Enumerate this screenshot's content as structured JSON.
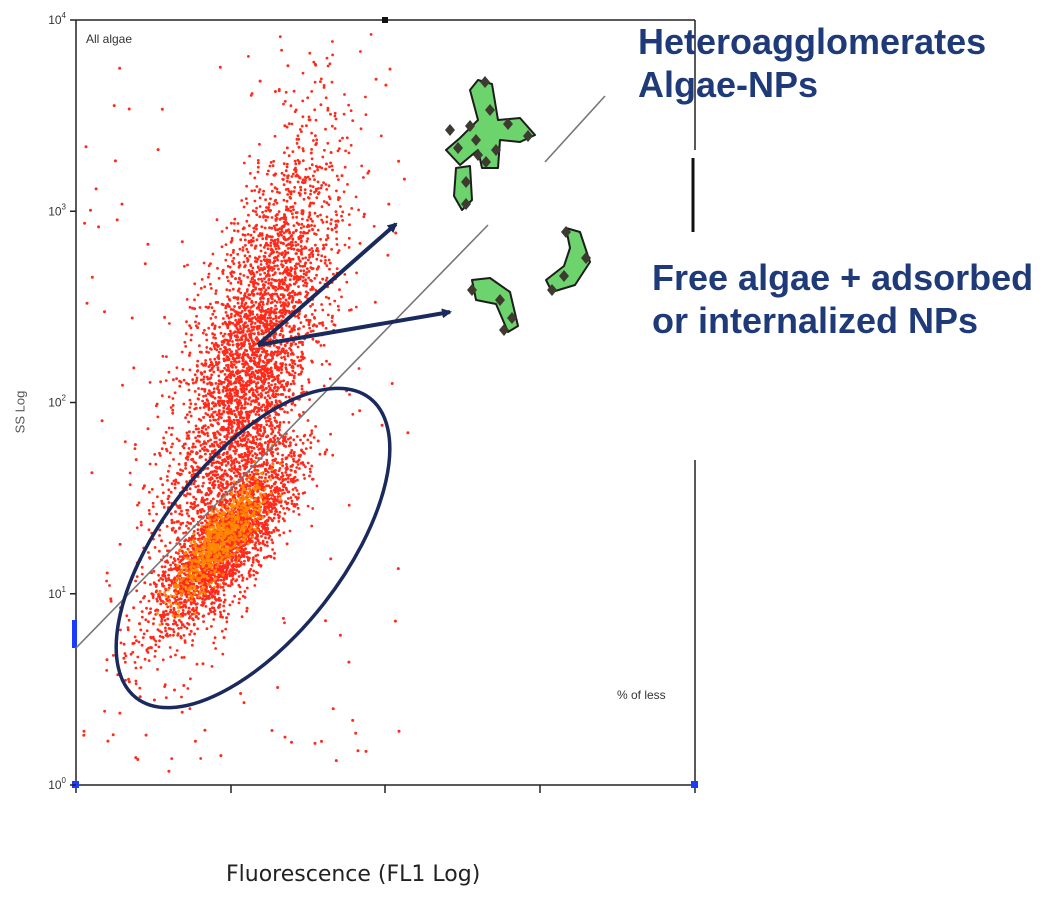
{
  "chart_data": {
    "type": "scatter",
    "title": "All algae",
    "xlabel": "Fluorescence (FL1 Log)",
    "ylabel": "SS Log",
    "scale": "log",
    "ylim": [
      1,
      10000
    ],
    "yticks": [
      {
        "mantissa": "10",
        "exp": "0",
        "value": 1
      },
      {
        "mantissa": "10",
        "exp": "1",
        "value": 10
      },
      {
        "mantissa": "10",
        "exp": "2",
        "value": 100
      },
      {
        "mantissa": "10",
        "exp": "3",
        "value": 1000
      },
      {
        "mantissa": "10",
        "exp": "4",
        "value": 10000
      }
    ],
    "quadrant_label": "% of less",
    "grid": false,
    "point_color": "#ff2a1a",
    "dense_color": "#ff8a00"
  },
  "annotations": {
    "hetero_line1": "Heteroagglomerates",
    "hetero_line2": "Algae-NPs",
    "free_line1": "Free algae + adsorbed",
    "free_line2": "or internalized NPs",
    "text_color": "#1f3a78",
    "ellipse_color": "#1a2a5c",
    "algae_fill": "#6dd46d",
    "np_color": "#3d3a30"
  }
}
